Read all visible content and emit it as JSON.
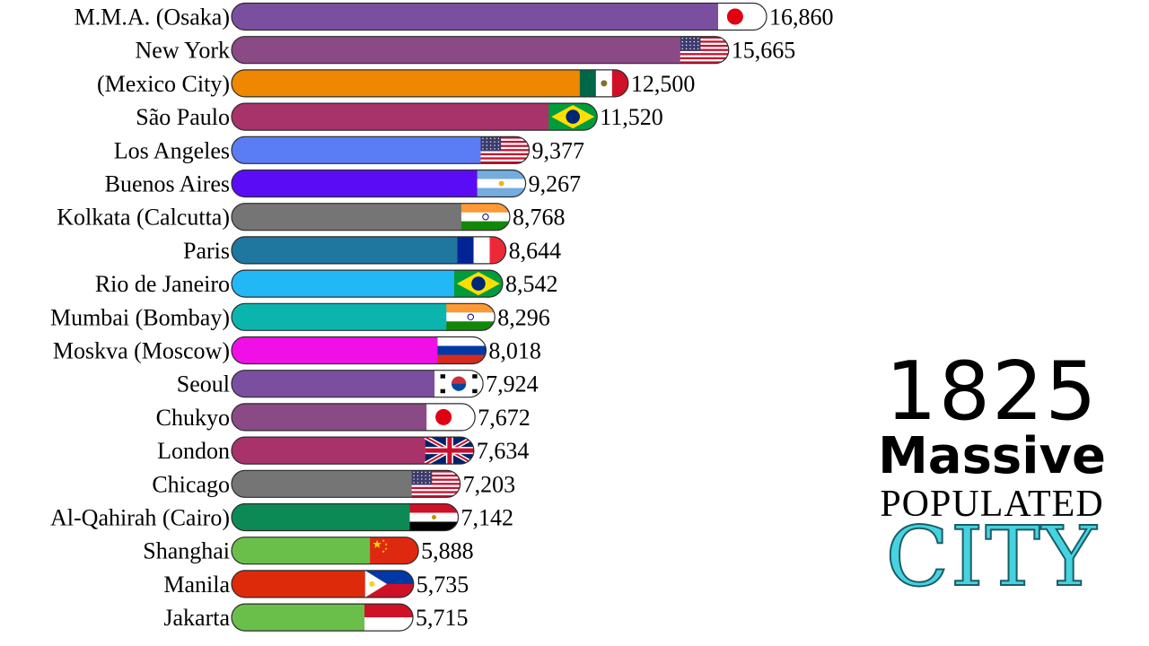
{
  "chart_data": {
    "type": "bar",
    "orientation": "horizontal",
    "categories": [
      "M.M.A. (Osaka)",
      "New York",
      "(Mexico City)",
      "São Paulo",
      "Los Angeles",
      "Buenos Aires",
      "Kolkata (Calcutta)",
      "Paris",
      "Rio de Janeiro",
      "Mumbai (Bombay)",
      "Moskva (Moscow)",
      "Seoul",
      "Chukyo",
      "London",
      "Chicago",
      "Al-Qahirah (Cairo)",
      "Shanghai",
      "Manila",
      "Jakarta"
    ],
    "values": [
      16860,
      15665,
      12500,
      11520,
      9377,
      9267,
      8768,
      8644,
      8542,
      8296,
      8018,
      7924,
      7672,
      7634,
      7203,
      7142,
      5888,
      5735,
      5715
    ],
    "value_labels": [
      "16,860",
      "15,665",
      "12,500",
      "11,520",
      "9,377",
      "9,267",
      "8,768",
      "8,644",
      "8,542",
      "8,296",
      "8,018",
      "7,924",
      "7,672",
      "7,634",
      "7,203",
      "7,142",
      "5,888",
      "5,735",
      "5,715"
    ],
    "colors": [
      "#7b4fa0",
      "#8a4a86",
      "#ef8700",
      "#a8336b",
      "#5a7df5",
      "#5a0cf5",
      "#757575",
      "#1f77a0",
      "#22b8f5",
      "#0bb5ae",
      "#f00fe6",
      "#7b4fa0",
      "#8a4a86",
      "#a8336b",
      "#757575",
      "#0c8a56",
      "#6abf4b",
      "#dd2a0a",
      "#6abf4b"
    ],
    "flags": [
      "japan",
      "usa",
      "mexico",
      "brazil",
      "usa",
      "argentina",
      "india",
      "france",
      "brazil",
      "india",
      "russia",
      "south-korea",
      "japan",
      "uk",
      "usa",
      "egypt",
      "china",
      "philippines",
      "indonesia"
    ],
    "xlim": [
      0,
      16860
    ]
  },
  "sidebar": {
    "year": "1825",
    "title_line1": "Massive",
    "title_line2": "POPULATED",
    "title_line3": "CITY"
  }
}
